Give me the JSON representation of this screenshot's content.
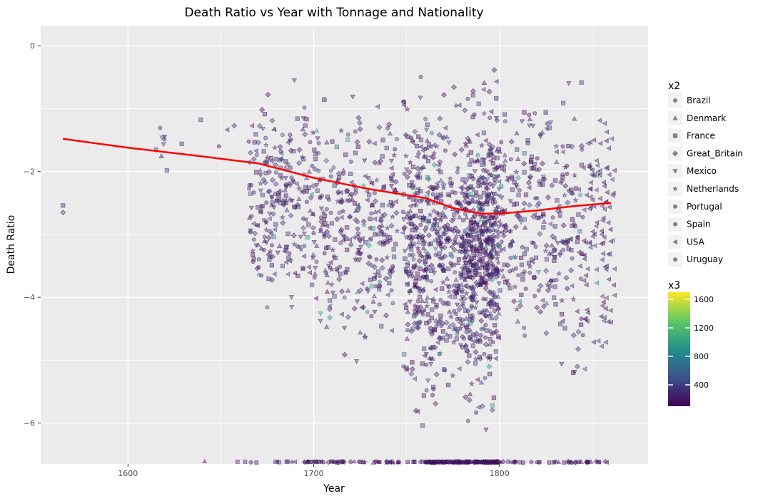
{
  "chart_data": {
    "type": "scatter",
    "title": "Death Ratio vs Year with Tonnage and Nationality",
    "xlabel": "Year",
    "ylabel": "Death Ratio",
    "xlim": [
      1553,
      1880
    ],
    "ylim": [
      -6.65,
      0.32
    ],
    "xticks": [
      1600,
      1700,
      1800
    ],
    "yticks": [
      0,
      -2,
      -4,
      -6
    ],
    "grid": true,
    "legend": {
      "placement": "right",
      "shape_title": "x2",
      "shape_items": [
        {
          "label": "Brazil",
          "shape": "circle"
        },
        {
          "label": "Denmark",
          "shape": "triangle-up"
        },
        {
          "label": "France",
          "shape": "octagon"
        },
        {
          "label": "Great_Britain",
          "shape": "diamond"
        },
        {
          "label": "Mexico",
          "shape": "triangle-down"
        },
        {
          "label": "Netherlands",
          "shape": "star"
        },
        {
          "label": "Portugal",
          "shape": "hexagon"
        },
        {
          "label": "Spain",
          "shape": "pentagon"
        },
        {
          "label": "USA",
          "shape": "triangle-left"
        },
        {
          "label": "Uruguay",
          "shape": "circle"
        }
      ],
      "color_title": "x3",
      "color_range": [
        100,
        1700
      ],
      "color_ticks": [
        "400",
        "800",
        "1200",
        "1600"
      ],
      "color_tick_values": [
        400,
        800,
        1200,
        1600
      ]
    },
    "trend_line": {
      "color": "#ff0000",
      "x": [
        1565,
        1600,
        1640,
        1670,
        1700,
        1730,
        1760,
        1775,
        1790,
        1800,
        1820,
        1840,
        1860
      ],
      "y": [
        -1.48,
        -1.62,
        -1.76,
        -1.87,
        -2.1,
        -2.28,
        -2.42,
        -2.58,
        -2.67,
        -2.67,
        -2.62,
        -2.55,
        -2.5
      ]
    },
    "clusters": [
      {
        "x": [
          1565,
          1565
        ],
        "y": [
          -2.65,
          -2.54
        ],
        "n": 2
      },
      {
        "x": [
          1615,
          1622
        ],
        "y": [
          -2.4,
          -0.8
        ],
        "n": 8
      },
      {
        "x": [
          1625,
          1660
        ],
        "y": [
          -2.6,
          -0.6
        ],
        "n": 5
      },
      {
        "x": [
          1665,
          1700
        ],
        "y": [
          -4.6,
          -0.3
        ],
        "n": 240
      },
      {
        "x": [
          1700,
          1745
        ],
        "y": [
          -5.5,
          -0.2
        ],
        "n": 320
      },
      {
        "x": [
          1748,
          1780
        ],
        "y": [
          -6.3,
          -0.2
        ],
        "n": 520
      },
      {
        "x": [
          1780,
          1800
        ],
        "y": [
          -6.3,
          -0.2
        ],
        "n": 560
      },
      {
        "x": [
          1800,
          1822
        ],
        "y": [
          -5.1,
          -0.3
        ],
        "n": 150
      },
      {
        "x": [
          1822,
          1862
        ],
        "y": [
          -5.9,
          -0.05
        ],
        "n": 260
      }
    ]
  }
}
